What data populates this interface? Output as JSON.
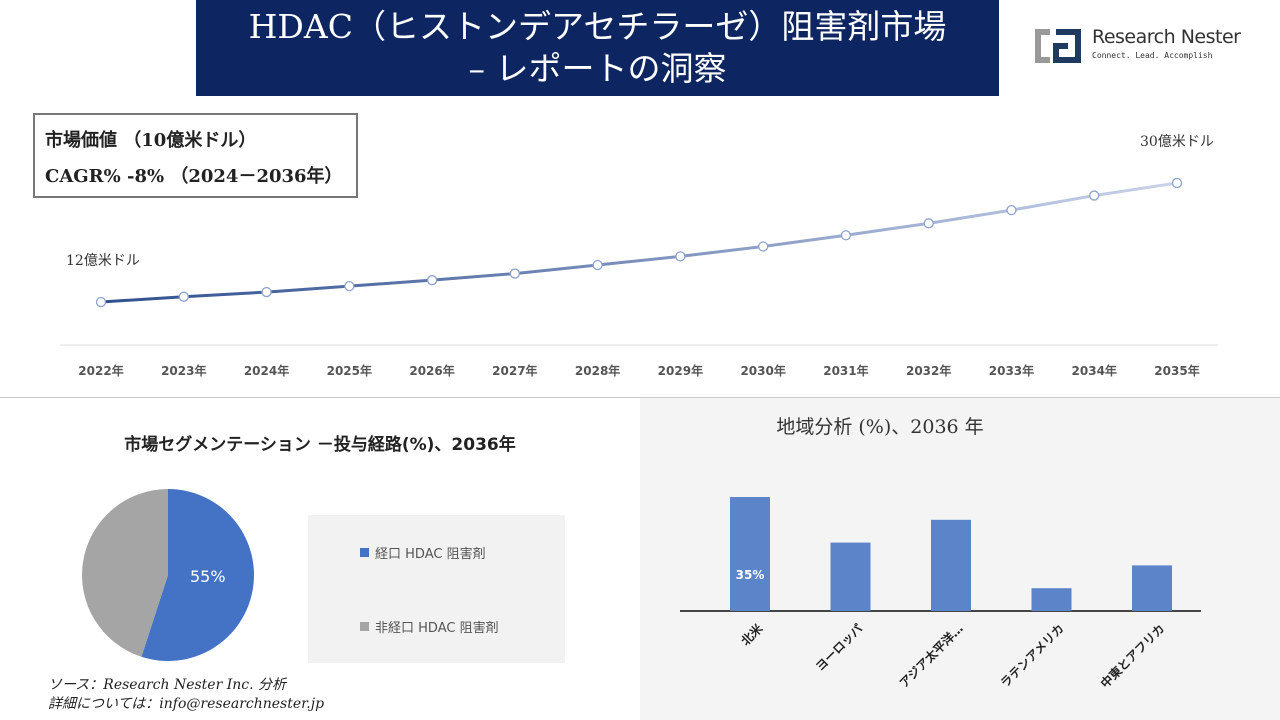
{
  "header": {
    "title_line1": "HDAC（ヒストンデアセチラーゼ）阻害剤市場",
    "title_line2": "– レポートの洞察",
    "logo_name": "Research Nester",
    "logo_tagline": "Connect. Lead. Accomplish"
  },
  "info": {
    "market_value": "市場価値 （10億米ドル）",
    "cagr": "CAGR% -8% （2024－2036年）"
  },
  "colors": {
    "title_bg": "#0d2560",
    "line_start": "#2f4f8f",
    "line_end": "#c9d3ea",
    "bar": "#5b84c9",
    "pie_blue": "#4472c4",
    "pie_gray": "#a5a5a5"
  },
  "chart_data": [
    {
      "type": "line",
      "x": [
        "2022年",
        "2023年",
        "2024年",
        "2025年",
        "2026年",
        "2027年",
        "2028年",
        "2029年",
        "2030年",
        "2031年",
        "2032年",
        "2033年",
        "2034年",
        "2035年"
      ],
      "values": [
        1.2,
        1.28,
        1.35,
        1.44,
        1.53,
        1.63,
        1.76,
        1.89,
        2.04,
        2.21,
        2.39,
        2.59,
        2.81,
        3.0
      ],
      "annotations": {
        "start": "12億米ドル",
        "end": "30億米ドル"
      },
      "unit": "10億米ドル"
    },
    {
      "type": "pie",
      "title": "市場セグメンテーション －投与経路(%)、2036年",
      "slices": [
        {
          "name": "経口 HDAC 阻害剤",
          "value": 55,
          "label": "55%"
        },
        {
          "name": "非経口 HDAC 阻害剤",
          "value": 45
        }
      ],
      "legend": "right"
    },
    {
      "type": "bar",
      "title": "地域分析 (%)、2036 年",
      "categories": [
        "北米",
        "ヨーロッパ",
        "アジア太平洋…",
        "ラテンアメリカ",
        "中東とアフリカ"
      ],
      "values": [
        35,
        21,
        28,
        7,
        14
      ],
      "data_labels": [
        "35%",
        "",
        "",
        "",
        ""
      ]
    }
  ],
  "footer": {
    "source": "ソース：Research Nester Inc. 分析",
    "contact": "詳細については：info@researchnester.jp"
  }
}
